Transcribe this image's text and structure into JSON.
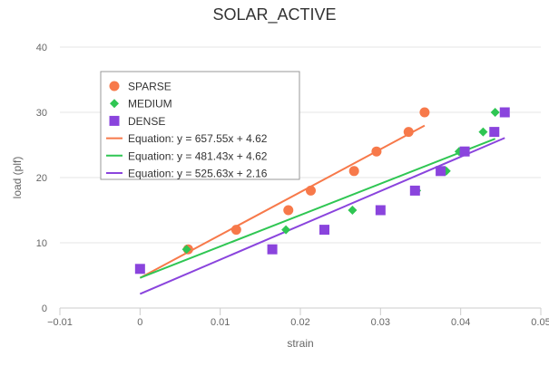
{
  "chart_data": {
    "type": "scatter",
    "title": "SOLAR_ACTIVE",
    "xlabel": "strain",
    "ylabel": "load (plf)",
    "xlim": [
      -0.01,
      0.05
    ],
    "ylim": [
      0,
      40
    ],
    "x_ticks": [
      "−0.01",
      "0",
      "0.01",
      "0.02",
      "0.03",
      "0.04",
      "0.05"
    ],
    "y_ticks": [
      "0",
      "10",
      "20",
      "30",
      "40"
    ],
    "grid": "horizontal",
    "legend_position": "top-left",
    "series": [
      {
        "name": "SPARSE",
        "marker": "circle",
        "color": "#f7794a",
        "points": [
          {
            "x": 0.006,
            "y": 9
          },
          {
            "x": 0.012,
            "y": 12
          },
          {
            "x": 0.0185,
            "y": 15
          },
          {
            "x": 0.0213,
            "y": 18
          },
          {
            "x": 0.0267,
            "y": 21
          },
          {
            "x": 0.0295,
            "y": 24
          },
          {
            "x": 0.0335,
            "y": 27
          },
          {
            "x": 0.0355,
            "y": 30
          }
        ]
      },
      {
        "name": "MEDIUM",
        "marker": "diamond",
        "color": "#2fc653",
        "points": [
          {
            "x": 0.0058,
            "y": 9
          },
          {
            "x": 0.0182,
            "y": 12
          },
          {
            "x": 0.0265,
            "y": 15
          },
          {
            "x": 0.0345,
            "y": 18
          },
          {
            "x": 0.0382,
            "y": 21
          },
          {
            "x": 0.0398,
            "y": 24
          },
          {
            "x": 0.0428,
            "y": 27
          },
          {
            "x": 0.0443,
            "y": 30
          }
        ]
      },
      {
        "name": "DENSE",
        "marker": "square",
        "color": "#8a44dd",
        "points": [
          {
            "x": 0.0,
            "y": 6
          },
          {
            "x": 0.0165,
            "y": 9
          },
          {
            "x": 0.023,
            "y": 12
          },
          {
            "x": 0.03,
            "y": 15
          },
          {
            "x": 0.0343,
            "y": 18
          },
          {
            "x": 0.0375,
            "y": 21
          },
          {
            "x": 0.0405,
            "y": 24
          },
          {
            "x": 0.0442,
            "y": 27
          },
          {
            "x": 0.0455,
            "y": 30
          }
        ]
      }
    ],
    "trendlines": [
      {
        "label": "Equation: y = 657.55x + 4.62",
        "color": "#f7794a",
        "slope": 657.55,
        "intercept": 4.62,
        "x_range": [
          0,
          0.0355
        ]
      },
      {
        "label": "Equation: y = 481.43x + 4.62",
        "color": "#2fc653",
        "slope": 481.43,
        "intercept": 4.62,
        "x_range": [
          0,
          0.0443
        ]
      },
      {
        "label": "Equation: y = 525.63x + 2.16",
        "color": "#8a44dd",
        "slope": 525.63,
        "intercept": 2.16,
        "x_range": [
          0,
          0.0455
        ]
      }
    ]
  }
}
